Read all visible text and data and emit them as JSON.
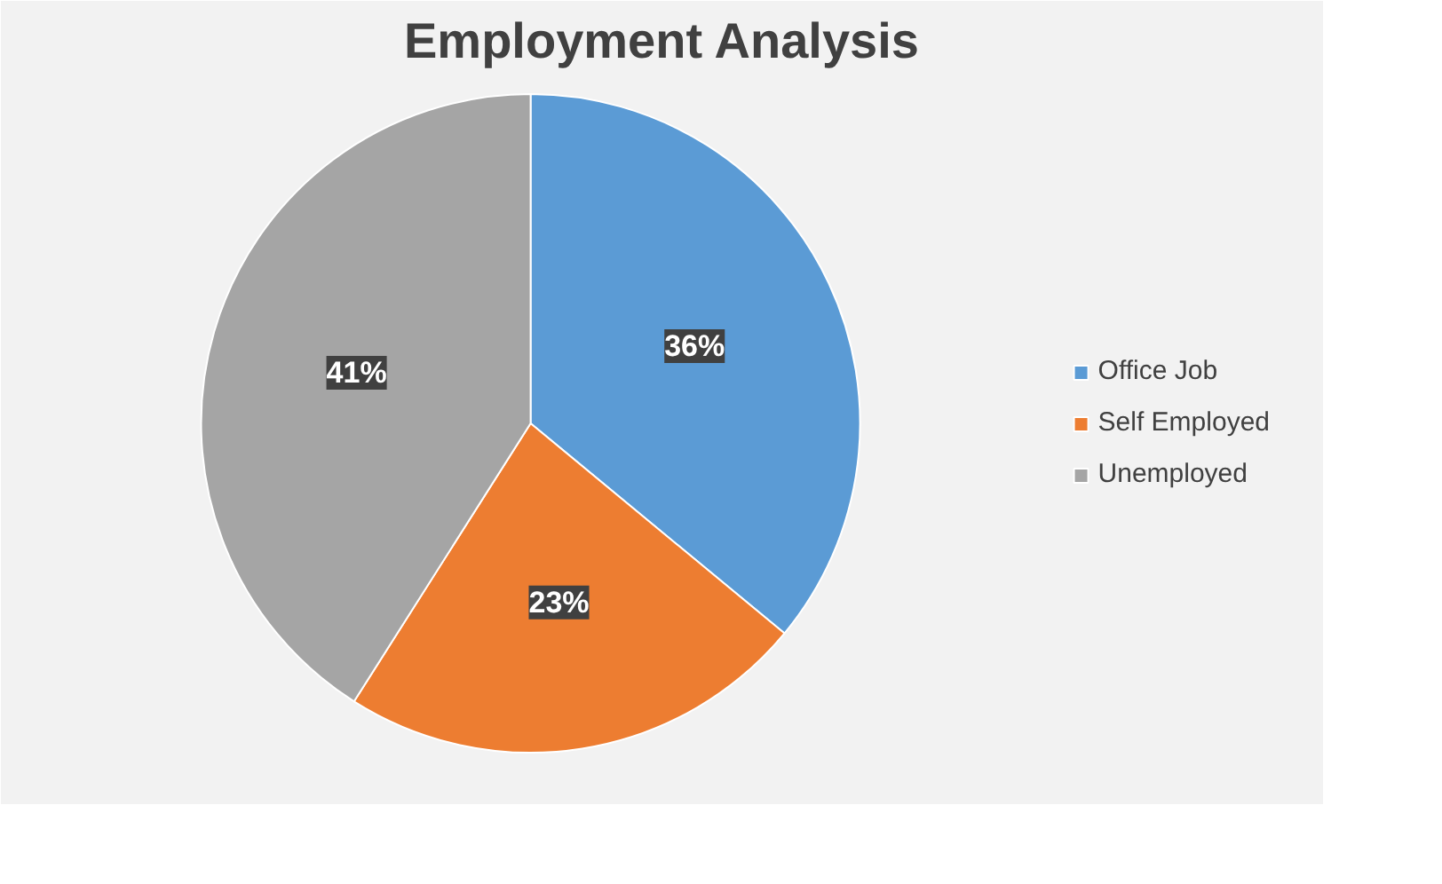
{
  "chart_data": {
    "type": "pie",
    "title": "Employment Analysis",
    "categories": [
      "Office Job",
      "Self Employed",
      "Unemployed"
    ],
    "values": [
      36,
      23,
      41
    ],
    "colors": [
      "#5b9bd5",
      "#ed7d31",
      "#a5a5a5"
    ],
    "value_labels": [
      "36%",
      "23%",
      "41%"
    ],
    "legend": "right"
  }
}
